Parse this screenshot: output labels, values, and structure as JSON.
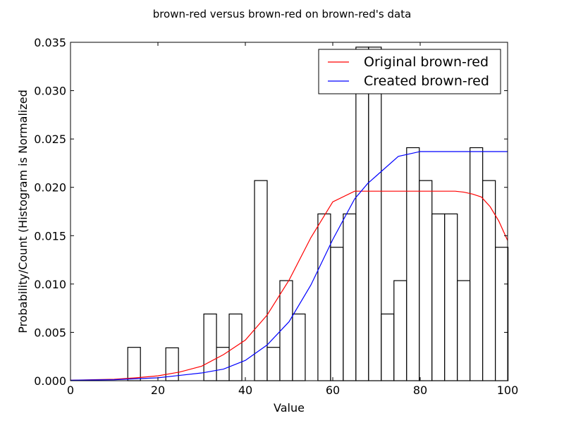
{
  "chart_data": {
    "type": "bar",
    "title": "brown-red versus brown-red on brown-red's data",
    "xlabel": "Value",
    "ylabel": "Probability/Count (Histogram is Normalized",
    "xlim": [
      0,
      100
    ],
    "ylim": [
      0,
      0.035
    ],
    "grid": false,
    "legend_position": "top-right",
    "x_ticks": [
      0,
      20,
      40,
      60,
      80,
      100
    ],
    "x_tick_labels": [
      "0",
      "20",
      "40",
      "60",
      "80",
      "100"
    ],
    "y_ticks": [
      0,
      0.005,
      0.01,
      0.015,
      0.02,
      0.025,
      0.03,
      0.035
    ],
    "y_tick_labels": [
      "0.000",
      "0.005",
      "0.010",
      "0.015",
      "0.020",
      "0.025",
      "0.030",
      "0.035"
    ],
    "histogram": {
      "bin_edges": [
        13.1,
        16.0,
        18.9,
        21.8,
        24.7,
        27.6,
        30.5,
        33.4,
        36.3,
        39.2,
        42.1,
        45.0,
        47.9,
        50.8,
        53.7,
        56.6,
        59.5,
        62.4,
        65.3,
        68.2,
        71.1,
        74.0,
        76.9,
        79.8,
        82.7,
        85.6,
        88.5,
        91.4,
        94.3,
        97.2,
        100.1
      ],
      "values": [
        0.00345,
        0,
        0,
        0.0034,
        0,
        0,
        0.0069,
        0.00345,
        0.0069,
        0,
        0.0207,
        0.00345,
        0.01035,
        0.0069,
        0,
        0.01725,
        0.0138,
        0.01725,
        0.0345,
        0.0345,
        0.0069,
        0.01035,
        0.0241,
        0.0207,
        0.01725,
        0.01725,
        0.01035,
        0.0241,
        0.0207,
        0.0138
      ],
      "edge_color": "#000000",
      "fill_color": "#ffffff"
    },
    "series": [
      {
        "name": "Original brown-red",
        "color": "#ff0000",
        "x": [
          0,
          5,
          10,
          15,
          20,
          25,
          30,
          35,
          40,
          45,
          50,
          55,
          60,
          65,
          70,
          75,
          80,
          85,
          88,
          90,
          92,
          94,
          96,
          98,
          100
        ],
        "y": [
          5e-05,
          0.0001,
          0.00015,
          0.0003,
          0.0005,
          0.0009,
          0.0015,
          0.0027,
          0.0042,
          0.0068,
          0.0104,
          0.0148,
          0.0185,
          0.0196,
          0.0196,
          0.0196,
          0.0196,
          0.0196,
          0.0196,
          0.0195,
          0.0193,
          0.019,
          0.018,
          0.0165,
          0.0145
        ]
      },
      {
        "name": "Created brown-red",
        "color": "#0000ff",
        "x": [
          0,
          10,
          20,
          30,
          35,
          40,
          45,
          50,
          55,
          60,
          65,
          68,
          70,
          75,
          80,
          85,
          90,
          95,
          100
        ],
        "y": [
          5e-05,
          0.0001,
          0.0003,
          0.0008,
          0.0012,
          0.0021,
          0.0037,
          0.0061,
          0.0099,
          0.0146,
          0.0188,
          0.0204,
          0.0212,
          0.0232,
          0.0237,
          0.0237,
          0.0237,
          0.0237,
          0.0237
        ]
      }
    ]
  }
}
